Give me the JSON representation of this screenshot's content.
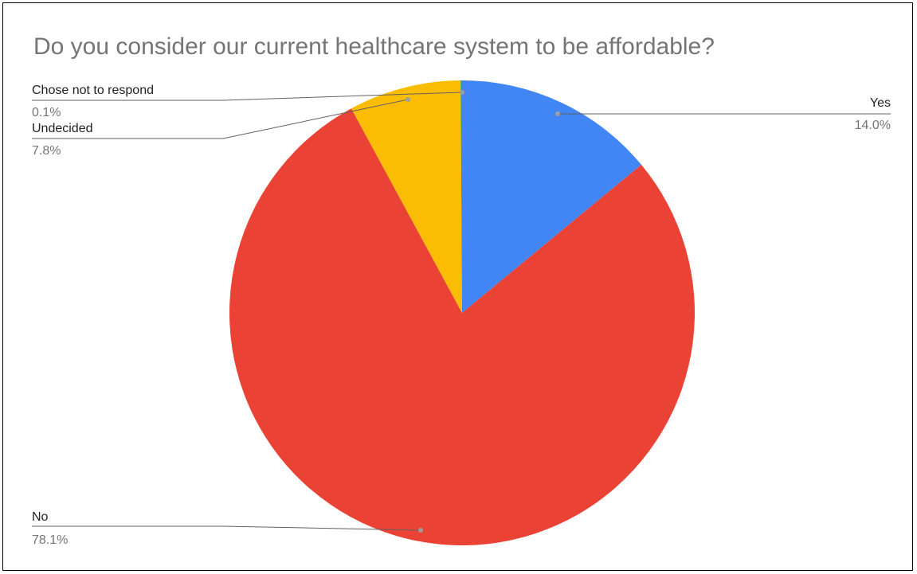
{
  "chart_data": {
    "type": "pie",
    "title": "Do you consider our current healthcare system to be affordable?",
    "slices": [
      {
        "label": "Yes",
        "percent_label": "14.0%",
        "value": 14.0,
        "color": "#4285F4"
      },
      {
        "label": "No",
        "percent_label": "78.1%",
        "value": 78.1,
        "color": "#EA4335"
      },
      {
        "label": "Undecided",
        "percent_label": "7.8%",
        "value": 7.8,
        "color": "#FBBC04"
      },
      {
        "label": "Chose not to respond",
        "percent_label": "0.1%",
        "value": 0.1,
        "color": "#34A853"
      }
    ],
    "start_angle": "12 o'clock",
    "direction": "clockwise",
    "labels": "outside with leader lines"
  }
}
